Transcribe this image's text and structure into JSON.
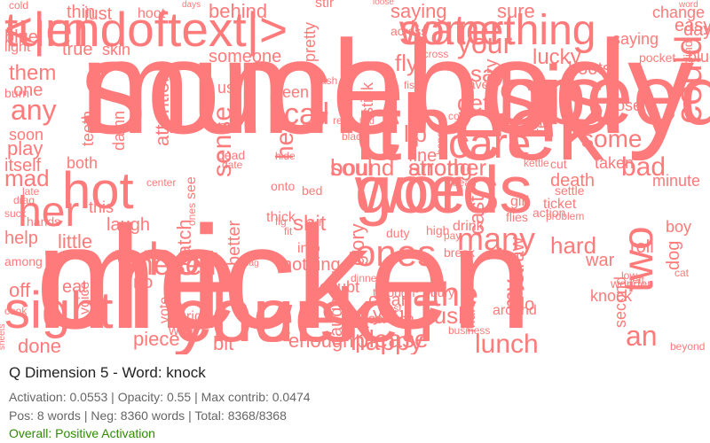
{
  "cloud": {
    "color": "#ff7a7a",
    "words": [
      "much",
      "me",
      "his",
      "yourself",
      "words",
      "<|endoftext|>",
      "something",
      "it",
      "soul",
      "another",
      "who",
      "her",
      "hot",
      "care",
      "lunch",
      "sight",
      "oneself",
      "ones",
      "two",
      "could",
      "many",
      "bad",
      "hard",
      "any",
      "them",
      "blue",
      "thin",
      "saying",
      "call",
      "some",
      "your",
      "say",
      "sense",
      "hell",
      "athe",
      "get",
      "lip",
      "fine",
      "cast",
      "straw",
      "please",
      "done",
      "piece",
      "bit",
      "enough",
      "happy",
      "an",
      "my",
      "rush",
      "help",
      "little",
      "play",
      "mad",
      "one",
      "soon",
      "light",
      "off",
      "eat",
      "war",
      "roll",
      "knock",
      "boy",
      "minute",
      "day",
      "fly",
      "lucky",
      "hoots",
      "sure",
      "shit",
      "glory",
      "catch",
      "better",
      "nothing",
      "into",
      "clean",
      "you",
      "caught",
      "murder",
      "second",
      "dog",
      "do",
      "hoot",
      "behind",
      "someone",
      "attention",
      "damn",
      "as",
      "us",
      "been",
      "stink",
      "pretty",
      "saying",
      "change",
      "teeth",
      "itself",
      "both",
      "this",
      "laugh",
      "no",
      "under",
      "voice",
      "vote",
      "wait",
      "ride",
      "burn",
      "high",
      "hands",
      "ones",
      "dead",
      "doubt",
      "through",
      "around",
      "story",
      "taken",
      "death",
      "lose",
      "tell",
      "true",
      "skin",
      "just",
      "see",
      "blind",
      "blue",
      "thick",
      "fig",
      "fit",
      "bed",
      "cash",
      "fish",
      "fox",
      "rest",
      "black",
      "date",
      "hide",
      "onto",
      "center",
      "cold",
      "days",
      "stir",
      "loose",
      "word",
      "easy",
      "across",
      "across",
      "have",
      "cut",
      "settle",
      "ticket",
      "action",
      "problem",
      "girl",
      "flies",
      "drink",
      "duty",
      "pay",
      "break",
      "best",
      "bury",
      "business",
      "scratch",
      "left",
      "beyond",
      "cat",
      "wonder",
      "low",
      "drag",
      "among",
      "suck",
      "late",
      "cook",
      "sheets",
      "bag",
      "wish",
      "dinner",
      "bird",
      "hope",
      "cop",
      "bean",
      "kettle",
      "pocket",
      "somebody",
      "chicken",
      "speed",
      "cheek",
      "goes",
      "turn",
      "water",
      "cheek",
      "bound",
      "strong"
    ]
  },
  "info": {
    "title": "Q Dimension 5 - Word: knock",
    "stats_line": "Activation: 0.0553 | Opacity: 0.55 | Max contrib: 0.0474",
    "count_line": "Pos: 8 words | Neg: 8360 words | Total: 8368/8368",
    "overall": "Overall: Positive Activation",
    "overall_color": "#2e8b00"
  }
}
